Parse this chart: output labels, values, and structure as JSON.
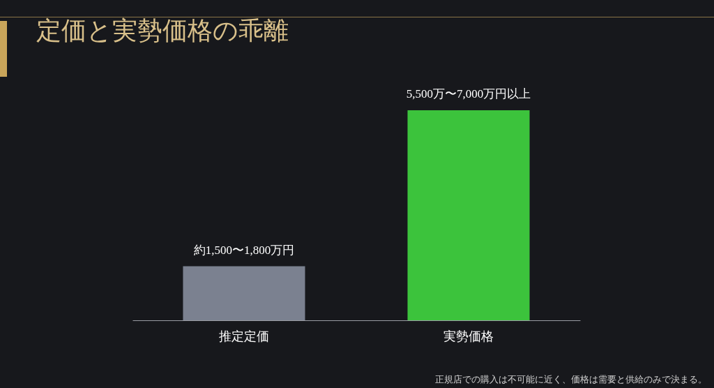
{
  "chart_data": {
    "type": "bar",
    "title": "定価と実勢価格の乖離",
    "categories": [
      "推定定価",
      "実勢価格"
    ],
    "values": [
      1800,
      7000
    ],
    "ylim": [
      0,
      7000
    ],
    "tick_labels": "x",
    "value_labels": [
      "約1,500〜1,800万円",
      "5,500万〜7,000万円以上"
    ],
    "colors": [
      "#7b8190",
      "#3cc33c"
    ],
    "legend": false,
    "annotations": [
      "正規店での購入は不可能に近く、価格は需要と供給のみで決まる。"
    ]
  }
}
